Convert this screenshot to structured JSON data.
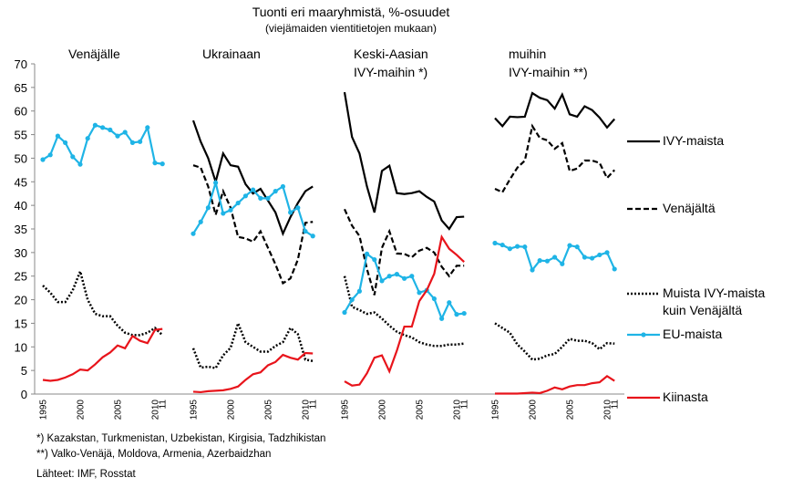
{
  "chart_data": [
    {
      "type": "line",
      "title": [
        "Venäjälle"
      ],
      "categories": [
        "1995",
        null,
        null,
        null,
        null,
        "2000",
        null,
        null,
        null,
        null,
        "2005",
        null,
        null,
        null,
        null,
        "2010",
        "11"
      ],
      "ylim": [
        0,
        70
      ],
      "yticks": [
        0,
        5,
        10,
        15,
        20,
        25,
        30,
        35,
        40,
        45,
        50,
        55,
        60,
        65,
        70
      ],
      "series": [
        {
          "name": "Muista IVY-maista kuin Venäjältä",
          "color": "#000000",
          "dash": "dotted",
          "values": [
            23,
            21.5,
            19.5,
            19.5,
            22,
            26,
            20,
            17,
            16.5,
            16.5,
            14.5,
            13,
            12.5,
            12.5,
            13,
            14,
            12.5
          ]
        },
        {
          "name": "EU-maista",
          "color": "#1fb4e6",
          "dash": "solid",
          "marker": true,
          "values": [
            49.7,
            50.7,
            54.7,
            53.3,
            50.3,
            48.7,
            54.2,
            57,
            56.5,
            56,
            54.7,
            55.5,
            53.3,
            53.5,
            56.5,
            49,
            48.8
          ]
        },
        {
          "name": "Kiinasta",
          "color": "#e8141b",
          "dash": "solid",
          "values": [
            3,
            2.8,
            3,
            3.5,
            4.2,
            5.2,
            5,
            6.3,
            7.8,
            8.8,
            10.3,
            9.7,
            12.3,
            11.3,
            10.8,
            13.6,
            13.8
          ]
        }
      ]
    },
    {
      "type": "line",
      "title": [
        "Ukrainaan"
      ],
      "categories": [
        "1995",
        null,
        null,
        null,
        null,
        "2000",
        null,
        null,
        null,
        null,
        "2005",
        null,
        null,
        null,
        null,
        "2010",
        "11"
      ],
      "ylim": [
        0,
        70
      ],
      "series": [
        {
          "name": "IVY-maista",
          "color": "#000000",
          "dash": "solid",
          "values": [
            58,
            53.5,
            50,
            45,
            51,
            48.5,
            48.2,
            44.5,
            42.5,
            43.5,
            41,
            38.5,
            34,
            37.5,
            40.5,
            43,
            44
          ]
        },
        {
          "name": "Venäjältä",
          "color": "#000000",
          "dash": "dashed",
          "values": [
            48.5,
            48,
            44,
            38,
            43,
            39.5,
            33.3,
            33,
            32.3,
            34.5,
            31,
            27.5,
            23.5,
            24.5,
            28.5,
            36.3,
            36.5
          ]
        },
        {
          "name": "Muista IVY-maista kuin Venäjältä",
          "color": "#000000",
          "dash": "dotted",
          "values": [
            9.7,
            5.6,
            5.8,
            5.5,
            8.2,
            9.8,
            15,
            11,
            10,
            9,
            9,
            10.2,
            11,
            14,
            12.7,
            7.3,
            7
          ]
        },
        {
          "name": "EU-maista",
          "color": "#1fb4e6",
          "dash": "solid",
          "marker": true,
          "values": [
            34,
            36.5,
            39.5,
            44.8,
            38.3,
            39,
            40.5,
            42,
            43.3,
            41.5,
            41.5,
            43,
            44,
            38.5,
            39.5,
            34.5,
            33.5
          ]
        },
        {
          "name": "Kiinasta",
          "color": "#e8141b",
          "dash": "solid",
          "values": [
            0.5,
            0.4,
            0.6,
            0.7,
            0.8,
            1.1,
            1.6,
            3,
            4.2,
            4.6,
            6.1,
            6.8,
            8.3,
            7.7,
            7.3,
            8.7,
            8.6
          ]
        }
      ]
    },
    {
      "type": "line",
      "title": [
        "Keski-Aasian",
        "IVY-maihin *)"
      ],
      "categories": [
        "1995",
        null,
        null,
        null,
        null,
        "2000",
        null,
        null,
        null,
        null,
        "2005",
        null,
        null,
        null,
        null,
        "2010",
        "11"
      ],
      "ylim": [
        0,
        70
      ],
      "series": [
        {
          "name": "IVY-maista",
          "color": "#000000",
          "dash": "solid",
          "values": [
            64,
            54.5,
            51,
            44,
            38.5,
            47.3,
            48.4,
            42.6,
            42.4,
            42.6,
            43,
            41.8,
            40.8,
            36.8,
            35,
            37.5,
            37.6
          ]
        },
        {
          "name": "Venäjältä",
          "color": "#000000",
          "dash": "dashed",
          "values": [
            39.2,
            35.7,
            33.5,
            26.5,
            21,
            31,
            34.5,
            29.8,
            29.7,
            29,
            30.4,
            31,
            30,
            27,
            25,
            27.2,
            27.2
          ]
        },
        {
          "name": "Muista IVY-maista kuin Venäjältä",
          "color": "#000000",
          "dash": "dotted",
          "values": [
            25,
            18.5,
            17.8,
            17,
            17.3,
            16,
            14.5,
            13.2,
            12.5,
            12,
            11,
            10.5,
            10.2,
            10.2,
            10.5,
            10.5,
            10.7
          ]
        },
        {
          "name": "EU-maista",
          "color": "#1fb4e6",
          "dash": "solid",
          "marker": true,
          "values": [
            17.3,
            20,
            21.8,
            29.7,
            28.5,
            24,
            25,
            25.4,
            24.5,
            25,
            21.5,
            22,
            20.2,
            16,
            19.4,
            16.9,
            17.1
          ]
        },
        {
          "name": "Kiinasta",
          "color": "#e8141b",
          "dash": "solid",
          "values": [
            2.7,
            1.8,
            2,
            4.4,
            7.7,
            8.2,
            4.8,
            9.2,
            14.3,
            14.3,
            19.7,
            22,
            25.5,
            33.3,
            30.8,
            29.5,
            28
          ]
        }
      ]
    },
    {
      "type": "line",
      "title": [
        "muihin",
        "IVY-maihin **)"
      ],
      "categories": [
        "1995",
        null,
        null,
        null,
        null,
        "2000",
        null,
        null,
        null,
        null,
        "2005",
        null,
        null,
        null,
        null,
        "2010",
        "11"
      ],
      "ylim": [
        0,
        70
      ],
      "series": [
        {
          "name": "IVY-maista",
          "color": "#000000",
          "dash": "solid",
          "values": [
            58.5,
            56.8,
            58.8,
            58.7,
            58.8,
            63.8,
            62.8,
            62.3,
            60.5,
            63.5,
            59.3,
            58.8,
            61,
            60.2,
            58.6,
            56.5,
            58.3
          ]
        },
        {
          "name": "Venäjältä",
          "color": "#000000",
          "dash": "dashed",
          "values": [
            43.5,
            42.8,
            45.5,
            48,
            49.5,
            56.8,
            54.3,
            53.8,
            52,
            53.2,
            47.3,
            47.8,
            49.5,
            49.5,
            49,
            45.8,
            47.5
          ]
        },
        {
          "name": "Muista IVY-maista kuin Venäjältä",
          "color": "#000000",
          "dash": "dotted",
          "values": [
            15,
            14,
            13,
            10.5,
            9,
            7.3,
            7.5,
            8.2,
            8.5,
            10,
            11.7,
            11.3,
            11.3,
            10.8,
            9.5,
            10.8,
            10.7
          ]
        },
        {
          "name": "EU-maista",
          "color": "#1fb4e6",
          "dash": "solid",
          "marker": true,
          "values": [
            32,
            31.6,
            30.8,
            31.3,
            31.2,
            26.3,
            28.3,
            28.2,
            29,
            27.6,
            31.5,
            31.2,
            29,
            28.8,
            29.5,
            30,
            26.5
          ]
        },
        {
          "name": "Kiinasta",
          "color": "#e8141b",
          "dash": "solid",
          "values": [
            0.1,
            0.1,
            0.1,
            0.1,
            0.2,
            0.3,
            0.2,
            0.7,
            1.4,
            1,
            1.6,
            1.9,
            1.9,
            2.3,
            2.5,
            3.8,
            2.8
          ]
        }
      ]
    }
  ],
  "title": "Tuonti eri maaryhmistä, %-osuudet",
  "subtitle": "(viejämaiden vientitietojen mukaan)",
  "notes": [
    "*) Kazakstan, Turkmenistan, Uzbekistan, Kirgisia, Tadzhikistan",
    "**) Valko-Venäjä, Moldova, Armenia, Azerbaidzhan",
    "Lähteet: IMF, Rosstat"
  ]
}
